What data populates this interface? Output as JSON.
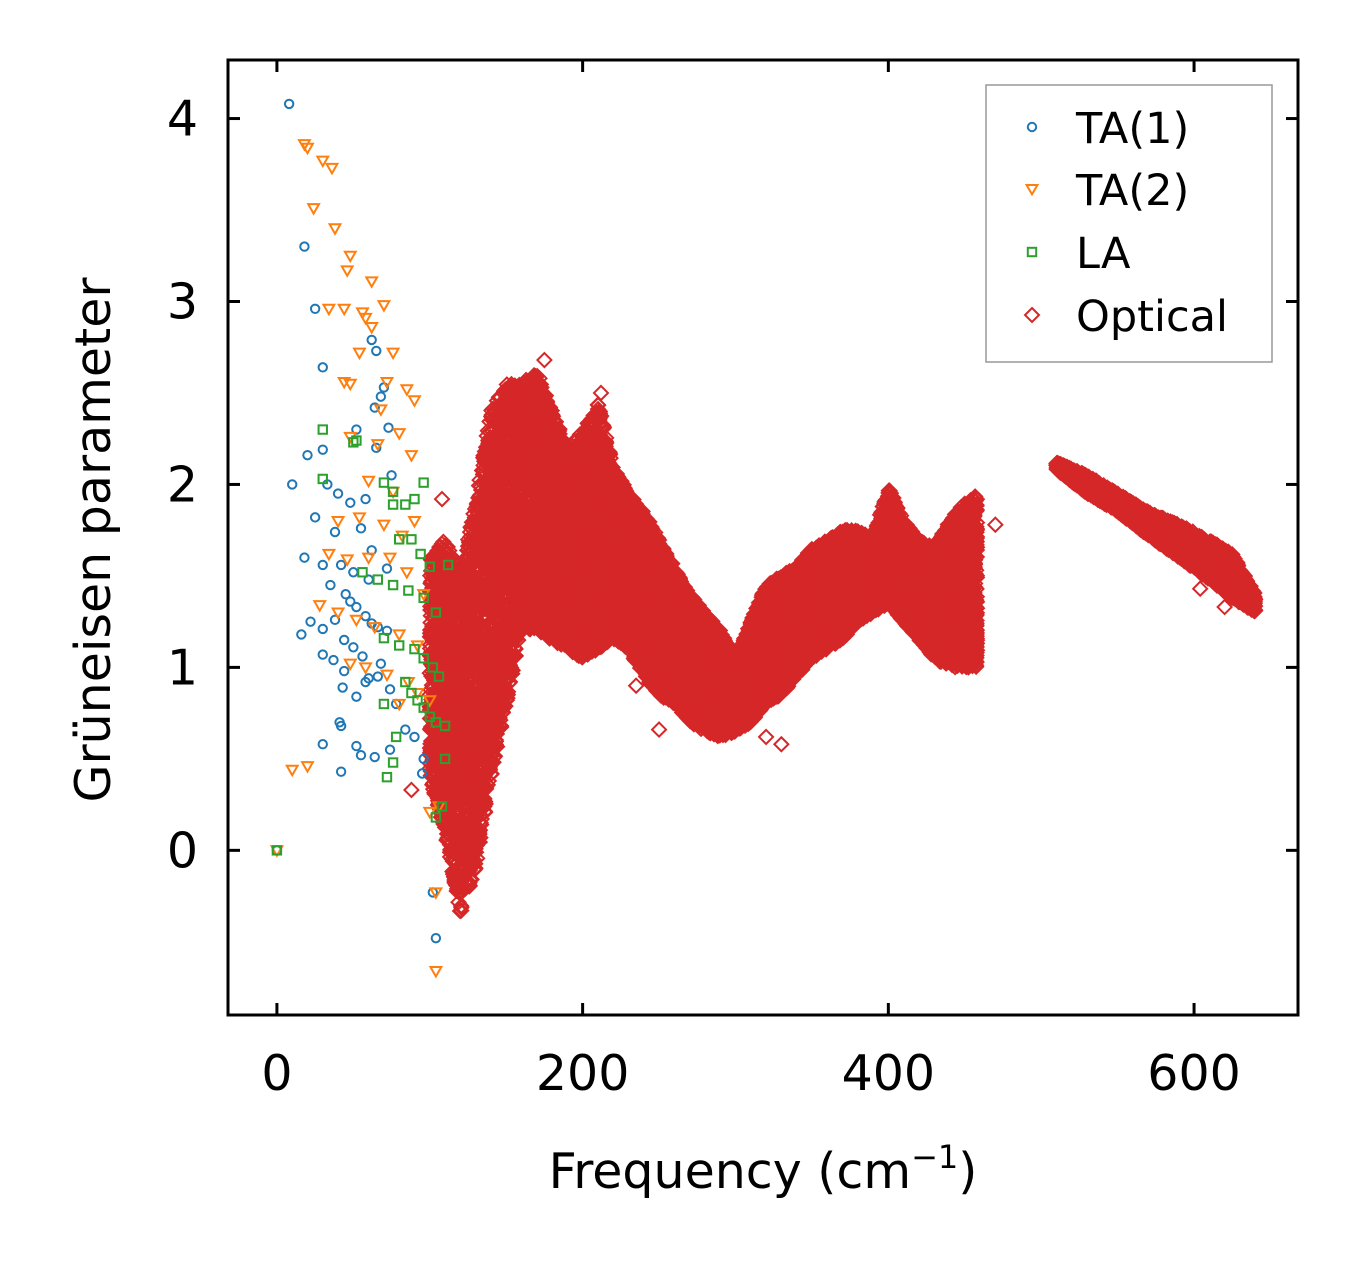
{
  "chart_data": {
    "type": "scatter",
    "title": "",
    "xlabel": "Frequency (cm",
    "xlabel_sup": "−1",
    "xlabel_suffix": ")",
    "ylabel": "Grüneisen parameter",
    "xlim": [
      -32,
      668
    ],
    "ylim": [
      -0.9,
      4.32
    ],
    "x_ticks": [
      0,
      200,
      400,
      600
    ],
    "y_ticks": [
      0,
      1,
      2,
      3,
      4
    ],
    "x_tick_labels": [
      "0",
      "200",
      "400",
      "600"
    ],
    "y_tick_labels": [
      "0",
      "1",
      "2",
      "3",
      "4"
    ],
    "legend_position": "top-right",
    "series": [
      {
        "name": "TA(1)",
        "marker": "circle",
        "color": "#1f77b4",
        "points": [
          [
            0,
            0.0
          ],
          [
            8,
            4.08
          ],
          [
            18,
            3.3
          ],
          [
            25,
            2.96
          ],
          [
            30,
            2.64
          ],
          [
            62,
            2.79
          ],
          [
            65,
            2.73
          ],
          [
            70,
            2.53
          ],
          [
            68,
            2.48
          ],
          [
            64,
            2.42
          ],
          [
            52,
            2.3
          ],
          [
            20,
            2.16
          ],
          [
            30,
            2.19
          ],
          [
            73,
            2.31
          ],
          [
            65,
            2.2
          ],
          [
            10,
            2.0
          ],
          [
            33,
            2.0
          ],
          [
            40,
            1.95
          ],
          [
            48,
            1.9
          ],
          [
            58,
            1.92
          ],
          [
            75,
            2.05
          ],
          [
            25,
            1.82
          ],
          [
            38,
            1.74
          ],
          [
            55,
            1.76
          ],
          [
            62,
            1.64
          ],
          [
            18,
            1.6
          ],
          [
            30,
            1.56
          ],
          [
            42,
            1.56
          ],
          [
            50,
            1.52
          ],
          [
            60,
            1.48
          ],
          [
            72,
            1.54
          ],
          [
            35,
            1.45
          ],
          [
            45,
            1.4
          ],
          [
            48,
            1.36
          ],
          [
            52,
            1.33
          ],
          [
            58,
            1.28
          ],
          [
            62,
            1.24
          ],
          [
            66,
            1.22
          ],
          [
            72,
            1.2
          ],
          [
            16,
            1.18
          ],
          [
            22,
            1.25
          ],
          [
            30,
            1.21
          ],
          [
            38,
            1.26
          ],
          [
            44,
            1.15
          ],
          [
            50,
            1.11
          ],
          [
            56,
            1.06
          ],
          [
            68,
            1.02
          ],
          [
            30,
            1.07
          ],
          [
            37,
            1.04
          ],
          [
            44,
            0.98
          ],
          [
            58,
            0.92
          ],
          [
            60,
            0.94
          ],
          [
            66,
            0.95
          ],
          [
            74,
            0.88
          ],
          [
            43,
            0.89
          ],
          [
            52,
            0.84
          ],
          [
            78,
            0.8
          ],
          [
            84,
            0.66
          ],
          [
            90,
            0.62
          ],
          [
            41,
            0.7
          ],
          [
            42,
            0.68
          ],
          [
            30,
            0.58
          ],
          [
            52,
            0.57
          ],
          [
            55,
            0.52
          ],
          [
            64,
            0.51
          ],
          [
            74,
            0.55
          ],
          [
            42,
            0.43
          ],
          [
            96,
            0.5
          ],
          [
            102,
            -0.23
          ],
          [
            104,
            -0.48
          ],
          [
            95,
            0.42
          ]
        ]
      },
      {
        "name": "TA(2)",
        "marker": "triangle-down",
        "color": "#ff7f0e",
        "points": [
          [
            0,
            0.0
          ],
          [
            18,
            3.86
          ],
          [
            20,
            3.84
          ],
          [
            30,
            3.77
          ],
          [
            36,
            3.73
          ],
          [
            24,
            3.51
          ],
          [
            38,
            3.4
          ],
          [
            48,
            3.25
          ],
          [
            46,
            3.17
          ],
          [
            62,
            3.11
          ],
          [
            34,
            2.96
          ],
          [
            44,
            2.96
          ],
          [
            56,
            2.94
          ],
          [
            70,
            2.98
          ],
          [
            58,
            2.91
          ],
          [
            62,
            2.86
          ],
          [
            76,
            2.72
          ],
          [
            54,
            2.72
          ],
          [
            44,
            2.56
          ],
          [
            48,
            2.55
          ],
          [
            72,
            2.56
          ],
          [
            85,
            2.52
          ],
          [
            90,
            2.46
          ],
          [
            68,
            2.41
          ],
          [
            48,
            2.26
          ],
          [
            66,
            2.22
          ],
          [
            80,
            2.28
          ],
          [
            88,
            2.16
          ],
          [
            60,
            2.02
          ],
          [
            76,
            1.96
          ],
          [
            40,
            1.8
          ],
          [
            54,
            1.82
          ],
          [
            70,
            1.78
          ],
          [
            82,
            1.72
          ],
          [
            90,
            1.8
          ],
          [
            34,
            1.62
          ],
          [
            46,
            1.59
          ],
          [
            60,
            1.6
          ],
          [
            74,
            1.6
          ],
          [
            85,
            1.52
          ],
          [
            96,
            1.4
          ],
          [
            28,
            1.34
          ],
          [
            40,
            1.3
          ],
          [
            52,
            1.26
          ],
          [
            64,
            1.22
          ],
          [
            80,
            1.18
          ],
          [
            92,
            1.12
          ],
          [
            48,
            1.02
          ],
          [
            58,
            1.0
          ],
          [
            72,
            0.96
          ],
          [
            86,
            0.92
          ],
          [
            92,
            0.86
          ],
          [
            100,
            0.82
          ],
          [
            80,
            0.8
          ],
          [
            10,
            0.44
          ],
          [
            20,
            0.46
          ],
          [
            100,
            0.21
          ],
          [
            106,
            0.24
          ],
          [
            104,
            -0.23
          ],
          [
            104,
            -0.66
          ]
        ]
      },
      {
        "name": "LA",
        "marker": "square",
        "color": "#2ca02c",
        "points": [
          [
            0,
            0.0
          ],
          [
            30,
            2.3
          ],
          [
            52,
            2.24
          ],
          [
            50,
            2.23
          ],
          [
            76,
            1.96
          ],
          [
            70,
            2.01
          ],
          [
            96,
            2.01
          ],
          [
            30,
            2.03
          ],
          [
            76,
            1.89
          ],
          [
            84,
            1.89
          ],
          [
            90,
            1.92
          ],
          [
            80,
            1.7
          ],
          [
            88,
            1.7
          ],
          [
            94,
            1.62
          ],
          [
            100,
            1.55
          ],
          [
            56,
            1.52
          ],
          [
            66,
            1.48
          ],
          [
            76,
            1.45
          ],
          [
            86,
            1.42
          ],
          [
            96,
            1.38
          ],
          [
            104,
            1.3
          ],
          [
            70,
            1.16
          ],
          [
            80,
            1.12
          ],
          [
            90,
            1.1
          ],
          [
            96,
            1.05
          ],
          [
            102,
            1.0
          ],
          [
            106,
            0.95
          ],
          [
            84,
            0.92
          ],
          [
            88,
            0.86
          ],
          [
            92,
            0.82
          ],
          [
            96,
            0.78
          ],
          [
            100,
            0.73
          ],
          [
            104,
            0.7
          ],
          [
            70,
            0.8
          ],
          [
            78,
            0.62
          ],
          [
            76,
            0.48
          ],
          [
            72,
            0.4
          ],
          [
            110,
            0.5
          ],
          [
            108,
            0.24
          ],
          [
            104,
            0.18
          ],
          [
            110,
            0.68
          ],
          [
            112,
            1.56
          ]
        ]
      },
      {
        "name": "Optical",
        "marker": "diamond",
        "color": "#d62728",
        "bands": [
          [
            100,
            0.4,
            1.6
          ],
          [
            110,
            0.1,
            1.7
          ],
          [
            120,
            -0.35,
            1.5
          ],
          [
            130,
            -0.1,
            1.9
          ],
          [
            140,
            0.4,
            2.4
          ],
          [
            150,
            0.8,
            2.55
          ],
          [
            160,
            1.2,
            2.55
          ],
          [
            170,
            1.2,
            2.62
          ],
          [
            180,
            1.15,
            2.4
          ],
          [
            190,
            1.1,
            2.2
          ],
          [
            200,
            1.05,
            2.3
          ],
          [
            210,
            1.1,
            2.45
          ],
          [
            220,
            1.15,
            2.1
          ],
          [
            230,
            1.1,
            1.95
          ],
          [
            240,
            0.95,
            1.85
          ],
          [
            250,
            0.85,
            1.7
          ],
          [
            260,
            0.8,
            1.55
          ],
          [
            270,
            0.7,
            1.4
          ],
          [
            280,
            0.65,
            1.3
          ],
          [
            290,
            0.62,
            1.2
          ],
          [
            300,
            0.65,
            1.05
          ],
          [
            310,
            0.7,
            1.25
          ],
          [
            320,
            0.8,
            1.45
          ],
          [
            330,
            0.85,
            1.5
          ],
          [
            340,
            0.95,
            1.55
          ],
          [
            350,
            1.05,
            1.65
          ],
          [
            360,
            1.1,
            1.7
          ],
          [
            370,
            1.15,
            1.75
          ],
          [
            380,
            1.25,
            1.75
          ],
          [
            390,
            1.3,
            1.7
          ],
          [
            400,
            1.35,
            2.0
          ],
          [
            410,
            1.25,
            1.8
          ],
          [
            420,
            1.15,
            1.7
          ],
          [
            430,
            1.05,
            1.65
          ],
          [
            440,
            1.0,
            1.8
          ],
          [
            450,
            1.0,
            1.9
          ],
          [
            458,
            1.0,
            1.95
          ]
        ],
        "bands2": [
          [
            510,
            2.08,
            2.12
          ],
          [
            530,
            1.95,
            2.05
          ],
          [
            550,
            1.85,
            1.95
          ],
          [
            570,
            1.72,
            1.85
          ],
          [
            590,
            1.6,
            1.78
          ],
          [
            610,
            1.48,
            1.7
          ],
          [
            625,
            1.38,
            1.62
          ],
          [
            640,
            1.3,
            1.4
          ]
        ],
        "points": [
          [
            88,
            0.33
          ],
          [
            108,
            1.92
          ],
          [
            112,
            0.72
          ],
          [
            126,
            0.5
          ],
          [
            330,
            0.58
          ],
          [
            250,
            0.66
          ],
          [
            235,
            0.9
          ],
          [
            275,
            0.78
          ],
          [
            320,
            0.62
          ],
          [
            200,
            2.1
          ],
          [
            175,
            2.68
          ],
          [
            212,
            2.5
          ],
          [
            470,
            1.78
          ],
          [
            596,
            1.62
          ],
          [
            604,
            1.43
          ],
          [
            620,
            1.33
          ]
        ]
      }
    ]
  }
}
